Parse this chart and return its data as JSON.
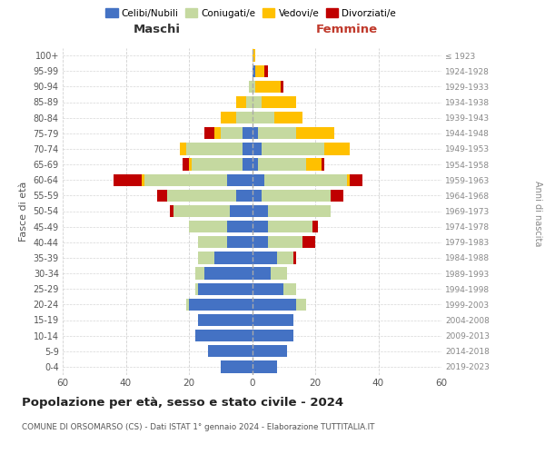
{
  "age_groups": [
    "0-4",
    "5-9",
    "10-14",
    "15-19",
    "20-24",
    "25-29",
    "30-34",
    "35-39",
    "40-44",
    "45-49",
    "50-54",
    "55-59",
    "60-64",
    "65-69",
    "70-74",
    "75-79",
    "80-84",
    "85-89",
    "90-94",
    "95-99",
    "100+"
  ],
  "birth_years": [
    "2019-2023",
    "2014-2018",
    "2009-2013",
    "2004-2008",
    "1999-2003",
    "1994-1998",
    "1989-1993",
    "1984-1988",
    "1979-1983",
    "1974-1978",
    "1969-1973",
    "1964-1968",
    "1959-1963",
    "1954-1958",
    "1949-1953",
    "1944-1948",
    "1939-1943",
    "1934-1938",
    "1929-1933",
    "1924-1928",
    "≤ 1923"
  ],
  "maschi": {
    "celibi": [
      10,
      14,
      18,
      17,
      20,
      17,
      15,
      12,
      8,
      8,
      7,
      5,
      8,
      3,
      3,
      3,
      0,
      0,
      0,
      0,
      0
    ],
    "coniugati": [
      0,
      0,
      0,
      0,
      1,
      1,
      3,
      5,
      9,
      12,
      18,
      22,
      26,
      16,
      18,
      7,
      5,
      2,
      1,
      0,
      0
    ],
    "vedovi": [
      0,
      0,
      0,
      0,
      0,
      0,
      0,
      0,
      0,
      0,
      0,
      0,
      1,
      1,
      2,
      2,
      5,
      3,
      0,
      0,
      0
    ],
    "divorziati": [
      0,
      0,
      0,
      0,
      0,
      0,
      0,
      0,
      0,
      0,
      1,
      3,
      9,
      2,
      0,
      3,
      0,
      0,
      0,
      0,
      0
    ]
  },
  "femmine": {
    "nubili": [
      8,
      11,
      13,
      13,
      14,
      10,
      6,
      8,
      5,
      5,
      5,
      3,
      4,
      2,
      3,
      2,
      0,
      0,
      0,
      1,
      0
    ],
    "coniugate": [
      0,
      0,
      0,
      0,
      3,
      4,
      5,
      5,
      11,
      14,
      20,
      22,
      26,
      15,
      20,
      12,
      7,
      3,
      1,
      0,
      0
    ],
    "vedove": [
      0,
      0,
      0,
      0,
      0,
      0,
      0,
      0,
      0,
      0,
      0,
      0,
      1,
      5,
      8,
      12,
      9,
      11,
      8,
      3,
      1
    ],
    "divorziate": [
      0,
      0,
      0,
      0,
      0,
      0,
      0,
      1,
      4,
      2,
      0,
      4,
      4,
      1,
      0,
      0,
      0,
      0,
      1,
      1,
      0
    ]
  },
  "colors": {
    "celibi": "#4472c4",
    "coniugati": "#c5d9a0",
    "vedovi": "#ffc000",
    "divorziati": "#c00000"
  },
  "xlim": 60,
  "title": "Popolazione per età, sesso e stato civile - 2024",
  "subtitle": "COMUNE DI ORSOMARSO (CS) - Dati ISTAT 1° gennaio 2024 - Elaborazione TUTTITALIA.IT",
  "ylabel_left": "Fasce di età",
  "ylabel_right": "Anni di nascita",
  "xlabel_left": "Maschi",
  "xlabel_right": "Femmine",
  "bg_color": "#ffffff",
  "grid_color": "#cccccc"
}
